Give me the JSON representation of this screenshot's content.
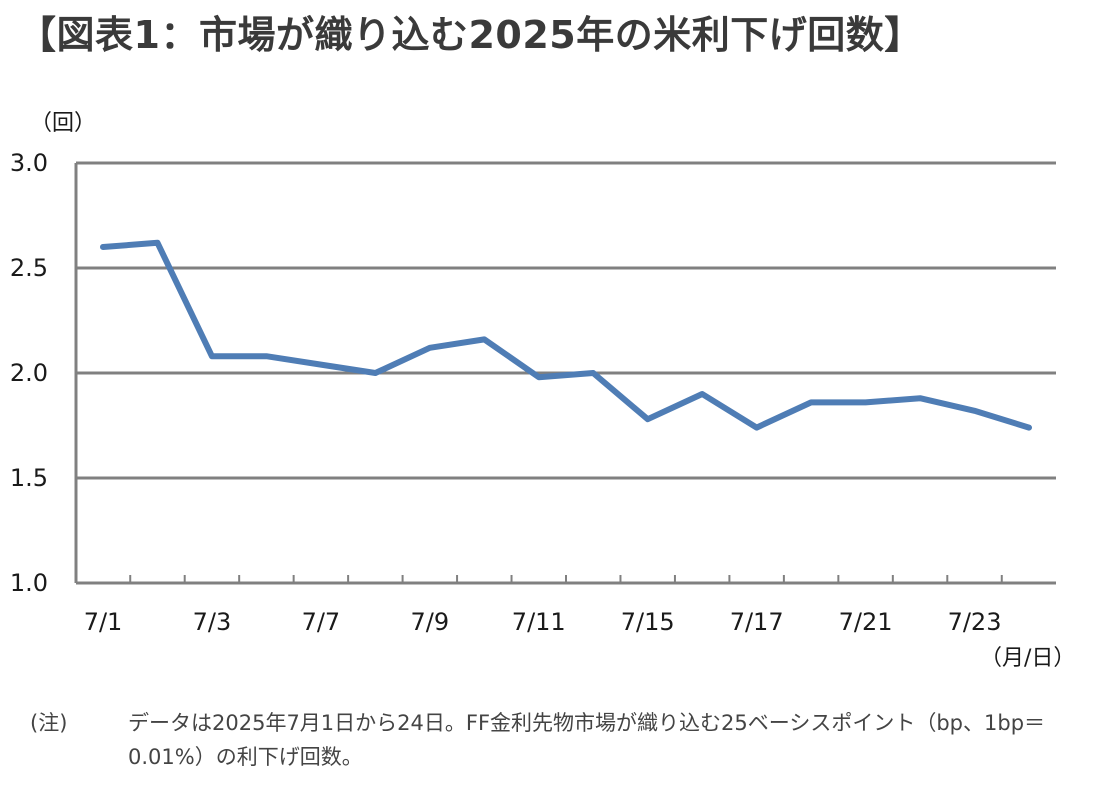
{
  "title": "【図表1：市場が織り込む2025年の米利下げ回数】",
  "note": {
    "label": "(注)",
    "text": "データは2025年7月1日から24日。FF金利先物市場が織り込む25ベーシスポイント（bp、1bp＝0.01%）の利下げ回数。"
  },
  "chart_data": {
    "type": "line",
    "ylabel": "（回）",
    "xlabel": "（月/日）",
    "ylim": [
      1.0,
      3.0
    ],
    "yticks": [
      "3.0",
      "2.5",
      "2.0",
      "1.5",
      "1.0"
    ],
    "categories": [
      "7/1",
      "7/2",
      "7/3",
      "7/4",
      "7/7",
      "7/8",
      "7/9",
      "7/10",
      "7/11",
      "7/14",
      "7/15",
      "7/16",
      "7/17",
      "7/18",
      "7/21",
      "7/22",
      "7/23",
      "7/24"
    ],
    "tick_labels": [
      "7/1",
      "7/3",
      "7/7",
      "7/9",
      "7/11",
      "7/15",
      "7/17",
      "7/21",
      "7/23"
    ],
    "label_every": 2,
    "series": [
      {
        "color": "#4f7db5",
        "values": [
          2.6,
          2.62,
          2.08,
          2.08,
          2.04,
          2.0,
          2.12,
          2.16,
          1.98,
          2.0,
          1.78,
          1.9,
          1.74,
          1.86,
          1.86,
          1.88,
          1.82,
          1.74
        ]
      }
    ],
    "grid": true,
    "gridColor": "#808080"
  }
}
